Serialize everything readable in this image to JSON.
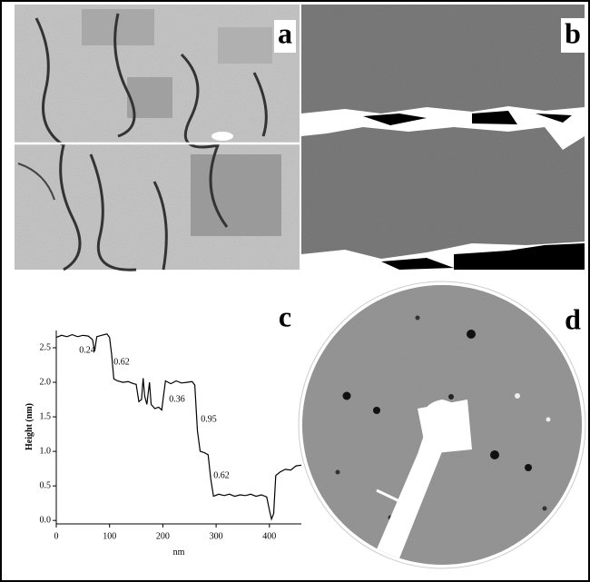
{
  "panel_labels": [
    "a",
    "b",
    "c",
    "d"
  ],
  "chart_data": {
    "type": "line",
    "xlabel": "nm",
    "ylabel": "Height (nm)",
    "x": [
      0,
      10,
      20,
      30,
      40,
      50,
      60,
      68,
      72,
      76,
      85,
      95,
      100,
      104,
      108,
      115,
      125,
      135,
      145,
      150,
      155,
      160,
      163,
      166,
      170,
      175,
      178,
      185,
      192,
      198,
      202,
      205,
      215,
      225,
      235,
      245,
      255,
      260,
      265,
      270,
      278,
      285,
      290,
      295,
      305,
      315,
      325,
      335,
      345,
      355,
      365,
      375,
      385,
      395,
      400,
      404,
      408,
      412,
      420,
      430,
      440,
      450,
      460
    ],
    "values": [
      2.65,
      2.68,
      2.66,
      2.69,
      2.66,
      2.68,
      2.67,
      2.62,
      2.45,
      2.66,
      2.68,
      2.7,
      2.65,
      2.4,
      2.05,
      2.02,
      2.0,
      2.01,
      1.98,
      1.97,
      1.72,
      1.75,
      2.06,
      1.8,
      1.68,
      2.0,
      1.68,
      1.62,
      1.64,
      1.6,
      1.85,
      2.02,
      1.98,
      2.02,
      1.99,
      2.0,
      2.01,
      1.96,
      1.3,
      1.0,
      0.98,
      0.95,
      0.6,
      0.35,
      0.38,
      0.36,
      0.38,
      0.35,
      0.37,
      0.36,
      0.38,
      0.35,
      0.37,
      0.34,
      0.15,
      0.02,
      0.1,
      0.65,
      0.7,
      0.74,
      0.73,
      0.79,
      0.8
    ],
    "color": "#000000",
    "xlim": [
      0,
      460
    ],
    "xticks": [
      0,
      100,
      200,
      300,
      400
    ],
    "ylim": [
      -0.05,
      2.75
    ],
    "yticks": [
      {
        "value": 0,
        "label": "0.0"
      },
      0.5,
      {
        "value": 1,
        "label": "1.0"
      },
      1.5,
      {
        "value": 2,
        "label": "2.0"
      },
      2.5
    ],
    "annotations": [
      "0.24",
      "0.62",
      "0.36",
      "0.95",
      "0.62"
    ]
  }
}
